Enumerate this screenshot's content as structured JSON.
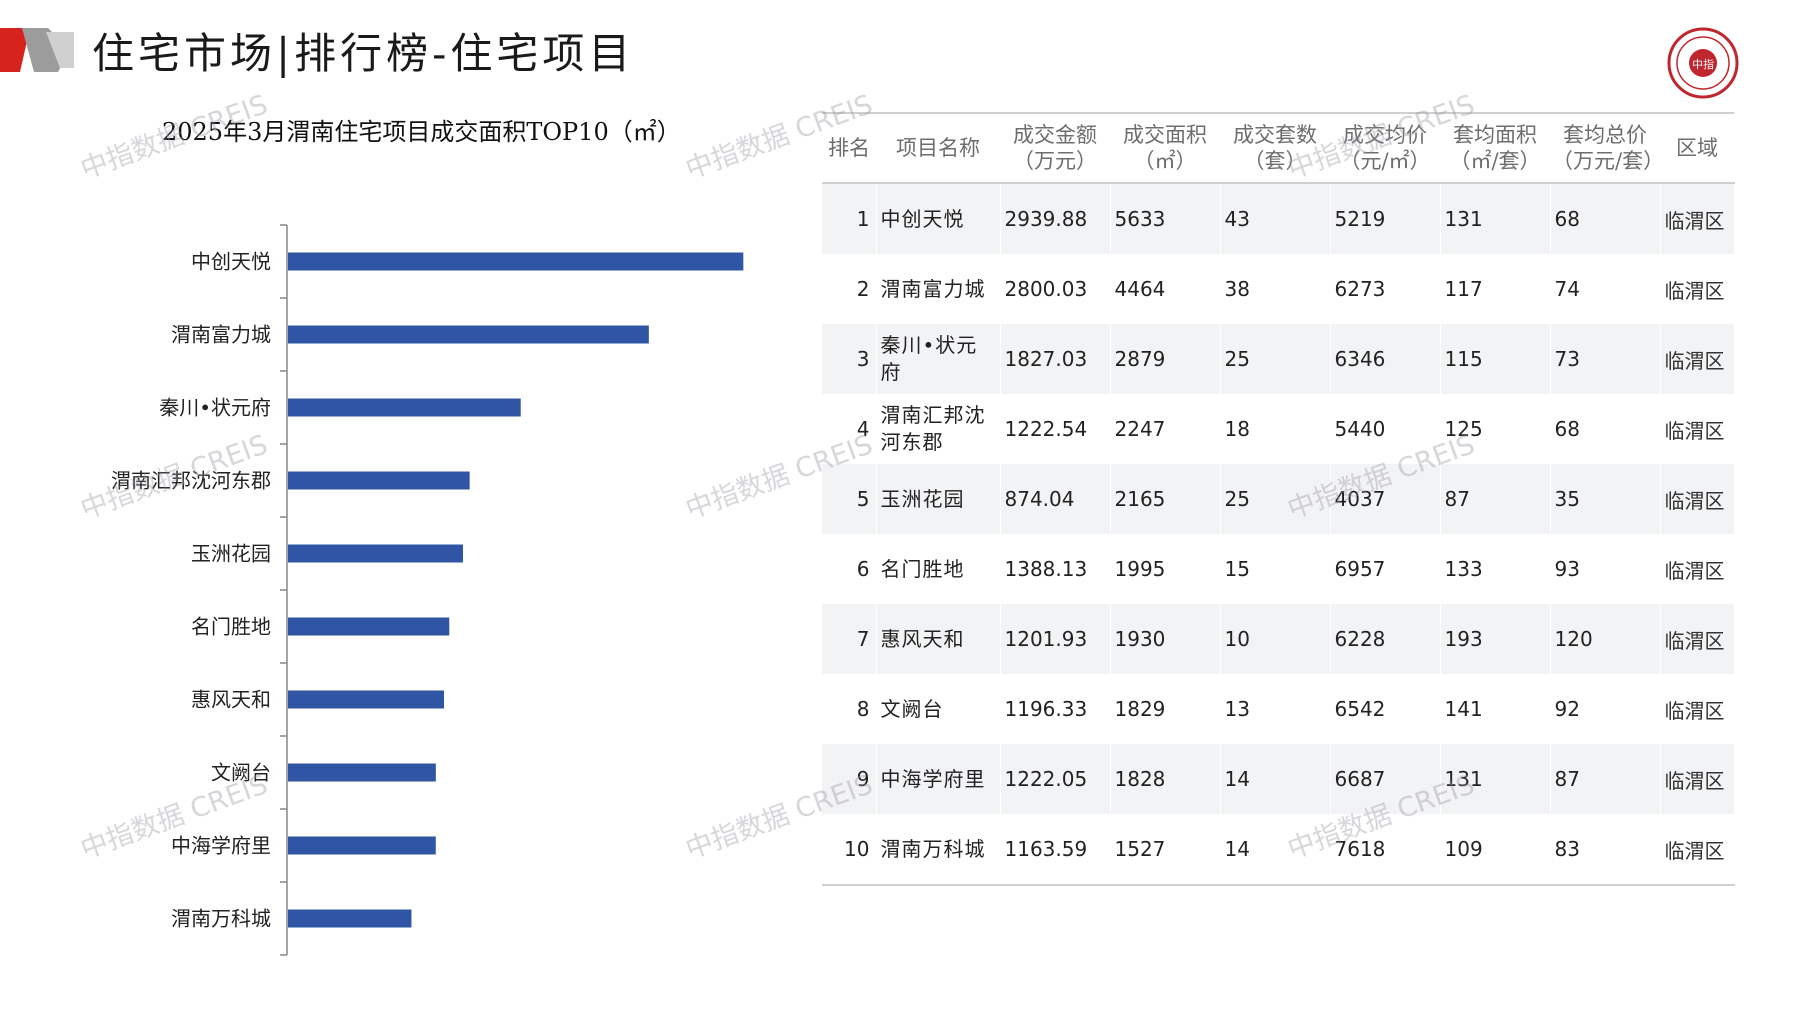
{
  "header": {
    "title": "住宅市场|排行榜-住宅项目",
    "accent_color": "#d7231e"
  },
  "logo": {
    "text": "中指"
  },
  "watermark": "中指数据 CREIS",
  "chart_data": {
    "type": "bar",
    "orientation": "horizontal",
    "title": "2025年3月渭南住宅项目成交面积TOP10（㎡）",
    "categories": [
      "中创天悦",
      "渭南富力城",
      "秦川•状元府",
      "渭南汇邦沈河东郡",
      "玉洲花园",
      "名门胜地",
      "惠风天和",
      "文阙台",
      "中海学府里",
      "渭南万科城"
    ],
    "values": [
      5633,
      4464,
      2879,
      2247,
      2165,
      1995,
      1930,
      1829,
      1828,
      1527
    ],
    "xlim": [
      0,
      6000
    ],
    "bar_color": "#2f55a4",
    "grid": false,
    "legend": "none"
  },
  "table": {
    "headers": [
      [
        "排名"
      ],
      [
        "项目名称"
      ],
      [
        "成交金额",
        "（万元）"
      ],
      [
        "成交面积",
        "（㎡）"
      ],
      [
        "成交套数",
        "（套）"
      ],
      [
        "成交均价",
        "（元/㎡）"
      ],
      [
        "套均面积",
        "（㎡/套）"
      ],
      [
        "套均总价",
        "（万元/套）"
      ],
      [
        "区域"
      ]
    ],
    "rows": [
      [
        "1",
        "中创天悦",
        "2939.88",
        "5633",
        "43",
        "5219",
        "131",
        "68",
        "临渭区"
      ],
      [
        "2",
        "渭南富力城",
        "2800.03",
        "4464",
        "38",
        "6273",
        "117",
        "74",
        "临渭区"
      ],
      [
        "3",
        "秦川•状元府",
        "1827.03",
        "2879",
        "25",
        "6346",
        "115",
        "73",
        "临渭区"
      ],
      [
        "4",
        "渭南汇邦沈河东郡",
        "1222.54",
        "2247",
        "18",
        "5440",
        "125",
        "68",
        "临渭区"
      ],
      [
        "5",
        "玉洲花园",
        "874.04",
        "2165",
        "25",
        "4037",
        "87",
        "35",
        "临渭区"
      ],
      [
        "6",
        "名门胜地",
        "1388.13",
        "1995",
        "15",
        "6957",
        "133",
        "93",
        "临渭区"
      ],
      [
        "7",
        "惠风天和",
        "1201.93",
        "1930",
        "10",
        "6228",
        "193",
        "120",
        "临渭区"
      ],
      [
        "8",
        "文阙台",
        "1196.33",
        "1829",
        "13",
        "6542",
        "141",
        "92",
        "临渭区"
      ],
      [
        "9",
        "中海学府里",
        "1222.05",
        "1828",
        "14",
        "6687",
        "131",
        "87",
        "临渭区"
      ],
      [
        "10",
        "渭南万科城",
        "1163.59",
        "1527",
        "14",
        "7618",
        "109",
        "83",
        "临渭区"
      ]
    ]
  }
}
